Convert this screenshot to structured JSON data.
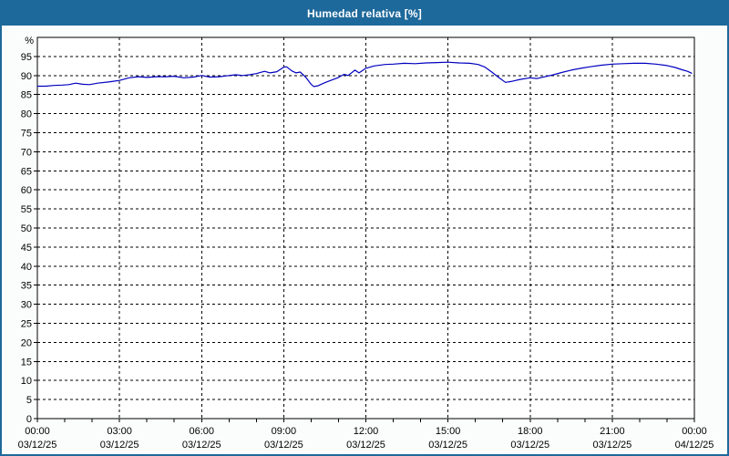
{
  "window": {
    "title": "Humedad relativa [%]"
  },
  "colors": {
    "frame": "#1e699b",
    "titlebar_text": "#ffffff",
    "background": "#fbfdfc",
    "plot_background": "#ffffff",
    "grid": "#000000",
    "axis": "#000000",
    "label_text": "#000000",
    "line": "#0000c0"
  },
  "chart_data": {
    "type": "line",
    "title": "Humedad relativa [%]",
    "ylabel_unit": "%",
    "ylim": [
      0,
      100
    ],
    "y_tick_step": 5,
    "y_tick_labels": [
      "0",
      "5",
      "10",
      "15",
      "20",
      "25",
      "30",
      "35",
      "40",
      "45",
      "50",
      "55",
      "60",
      "65",
      "70",
      "75",
      "80",
      "85",
      "90",
      "95"
    ],
    "xlim_hours": [
      0,
      24
    ],
    "x_minor_tick_hours": 1,
    "grid": "dashed",
    "legend": "none",
    "x_ticks": [
      {
        "hour": 0,
        "time": "00:00",
        "date": "03/12/25"
      },
      {
        "hour": 3,
        "time": "03:00",
        "date": "03/12/25"
      },
      {
        "hour": 6,
        "time": "06:00",
        "date": "03/12/25"
      },
      {
        "hour": 9,
        "time": "09:00",
        "date": "03/12/25"
      },
      {
        "hour": 12,
        "time": "12:00",
        "date": "03/12/25"
      },
      {
        "hour": 15,
        "time": "15:00",
        "date": "03/12/25"
      },
      {
        "hour": 18,
        "time": "18:00",
        "date": "03/12/25"
      },
      {
        "hour": 21,
        "time": "21:00",
        "date": "03/12/25"
      },
      {
        "hour": 24,
        "time": "00:00",
        "date": "04/12/25"
      }
    ],
    "series": [
      {
        "name": "Humedad relativa",
        "color": "#0000c0",
        "points": [
          [
            0.0,
            87.2
          ],
          [
            0.3,
            87.2
          ],
          [
            0.6,
            87.4
          ],
          [
            0.9,
            87.5
          ],
          [
            1.15,
            87.6
          ],
          [
            1.4,
            88.0
          ],
          [
            1.65,
            87.7
          ],
          [
            1.9,
            87.6
          ],
          [
            2.2,
            88.0
          ],
          [
            2.6,
            88.3
          ],
          [
            3.0,
            88.7
          ],
          [
            3.35,
            89.4
          ],
          [
            3.7,
            89.7
          ],
          [
            4.0,
            89.5
          ],
          [
            4.35,
            89.7
          ],
          [
            4.7,
            89.7
          ],
          [
            5.0,
            89.8
          ],
          [
            5.35,
            89.4
          ],
          [
            5.7,
            89.6
          ],
          [
            6.0,
            90.0
          ],
          [
            6.3,
            89.6
          ],
          [
            6.65,
            89.7
          ],
          [
            7.0,
            90.0
          ],
          [
            7.25,
            90.2
          ],
          [
            7.5,
            90.0
          ],
          [
            7.75,
            90.2
          ],
          [
            8.0,
            90.5
          ],
          [
            8.3,
            91.1
          ],
          [
            8.5,
            90.7
          ],
          [
            8.75,
            91.0
          ],
          [
            9.0,
            92.2
          ],
          [
            9.1,
            92.3
          ],
          [
            9.3,
            91.2
          ],
          [
            9.45,
            90.7
          ],
          [
            9.6,
            90.9
          ],
          [
            9.8,
            89.6
          ],
          [
            10.0,
            87.7
          ],
          [
            10.1,
            87.1
          ],
          [
            10.25,
            87.3
          ],
          [
            10.5,
            88.1
          ],
          [
            10.75,
            88.8
          ],
          [
            11.0,
            89.5
          ],
          [
            11.2,
            90.3
          ],
          [
            11.35,
            90.0
          ],
          [
            11.6,
            91.4
          ],
          [
            11.75,
            90.7
          ],
          [
            12.0,
            91.9
          ],
          [
            12.3,
            92.5
          ],
          [
            12.7,
            92.9
          ],
          [
            13.0,
            93.0
          ],
          [
            13.4,
            93.2
          ],
          [
            13.8,
            93.1
          ],
          [
            14.2,
            93.3
          ],
          [
            14.6,
            93.4
          ],
          [
            15.0,
            93.5
          ],
          [
            15.4,
            93.3
          ],
          [
            15.8,
            93.2
          ],
          [
            16.1,
            92.9
          ],
          [
            16.35,
            92.2
          ],
          [
            16.6,
            90.9
          ],
          [
            16.85,
            89.5
          ],
          [
            17.1,
            88.2
          ],
          [
            17.35,
            88.5
          ],
          [
            17.65,
            89.0
          ],
          [
            18.0,
            89.4
          ],
          [
            18.25,
            89.2
          ],
          [
            18.55,
            89.7
          ],
          [
            18.85,
            90.2
          ],
          [
            19.15,
            90.8
          ],
          [
            19.5,
            91.4
          ],
          [
            19.85,
            91.9
          ],
          [
            20.2,
            92.3
          ],
          [
            20.6,
            92.7
          ],
          [
            21.0,
            93.0
          ],
          [
            21.4,
            93.1
          ],
          [
            21.8,
            93.2
          ],
          [
            22.2,
            93.2
          ],
          [
            22.6,
            93.0
          ],
          [
            23.0,
            92.6
          ],
          [
            23.3,
            92.1
          ],
          [
            23.55,
            91.5
          ],
          [
            23.75,
            91.1
          ],
          [
            23.9,
            90.6
          ]
        ]
      }
    ]
  }
}
